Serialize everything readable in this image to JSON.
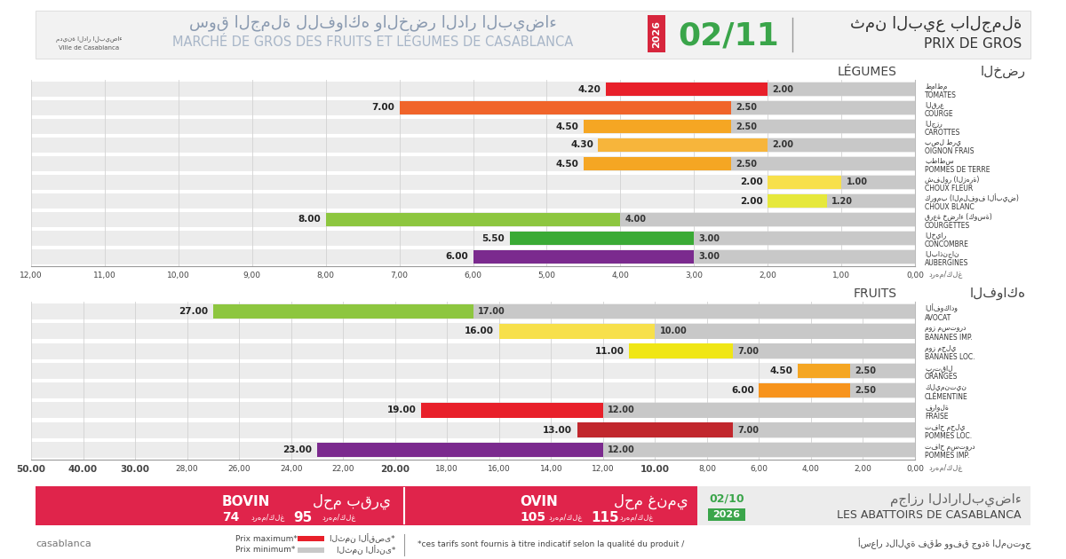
{
  "header": {
    "logo_ar": "مدينة الدار البيضاء",
    "logo_fr": "Ville de Casablanca",
    "title_ar": "سوق الجملة للفواكه والخضر الدار البيضاء",
    "title_fr": "MARCHÉ DE GROS DES FRUITS ET LÉGUMES DE CASABLANCA",
    "year": "2026",
    "date": "02/11",
    "price_title_ar": "ثمن البيع بالجملة",
    "price_title_fr": "PRIX DE GROS"
  },
  "chart_data": [
    {
      "type": "bar",
      "orientation": "horizontal",
      "title": "LÉGUMES",
      "subtitle": "الخضر",
      "x_label": "درهم/كلغ",
      "categories": [
        "طماطم\nTOMATES",
        "القرع\nCOURGE",
        "الجزر\nCAROTTES",
        "بصل طري\nOIGNON FRAIS",
        "بطاطس\nPOMMES DE TERRE",
        "شفلور (الزهرة)\nCHOUX FLEUR",
        "كرومب (الملفوف الأبيض)\nCHOUX BLANC",
        "قرعة خضراء (كوسة)\nCOURGETTES",
        "الخيار\nCONCOMBRE",
        "الباذنجان\nAUBERGINES"
      ],
      "series": [
        {
          "name": "Prix maximum*",
          "colors": [
            "#e8202a",
            "#f0642a",
            "#f5a623",
            "#f7b53b",
            "#f5a623",
            "#f7e04b",
            "#e6e83c",
            "#8dc63f",
            "#3aaa35",
            "#7b2a8e"
          ],
          "values": [
            4.2,
            7.0,
            4.5,
            4.3,
            4.5,
            2.0,
            2.0,
            8.0,
            5.5,
            6.0
          ],
          "value_labels": [
            "4.20",
            "7.00",
            "4.50",
            "4.30",
            "4.50",
            "2.00",
            "2.00",
            "8.00",
            "5.50",
            "6.00"
          ]
        },
        {
          "name": "Prix minimum*",
          "color": "#c8c8c8",
          "values": [
            2.0,
            2.5,
            2.5,
            2.0,
            2.5,
            1.0,
            1.2,
            4.0,
            3.0,
            3.0
          ],
          "value_labels": [
            "2.00",
            "2.50",
            "2.50",
            "2.00",
            "2.50",
            "1.00",
            "1.20",
            "4.00",
            "3.00",
            "3.00"
          ]
        }
      ],
      "xlim": [
        12,
        0
      ],
      "xticks": [
        {
          "value": 0,
          "label": "0,00"
        },
        {
          "value": 1,
          "label": "1,00"
        },
        {
          "value": 2,
          "label": "2,00"
        },
        {
          "value": 3,
          "label": "3,00"
        },
        {
          "value": 4,
          "label": "4,00"
        },
        {
          "value": 5,
          "label": "5,00"
        },
        {
          "value": 6,
          "label": "6,00"
        },
        {
          "value": 7,
          "label": "7,00"
        },
        {
          "value": 8,
          "label": "8,00"
        },
        {
          "value": 9,
          "label": "9,00"
        },
        {
          "value": 10,
          "label": "10,00"
        },
        {
          "value": 11,
          "label": "11,00"
        },
        {
          "value": 12,
          "label": "12,00"
        }
      ],
      "grid": true,
      "data_labels": true,
      "stacked": false
    },
    {
      "type": "bar",
      "orientation": "horizontal",
      "title": "FRUITS",
      "subtitle": "الفواكه",
      "x_label": "درهم/كلغ",
      "categories": [
        "الأفوكادو\nAVOCAT",
        "موز مستورد\nBANANES IMP.",
        "موز محلي\nBANANES LOC.",
        "برتقال\nORANGES",
        "كليمنتين\nCLÉMENTINE",
        "فراولة\nFRAISE",
        "تفاح محلي\nPOMMES LOC.",
        "تفاح مستورد\nPOMMES IMP."
      ],
      "series": [
        {
          "name": "Prix maximum*",
          "colors": [
            "#8dc63f",
            "#f7e04b",
            "#f0e615",
            "#f5a623",
            "#f7941d",
            "#e8202a",
            "#c1272d",
            "#7b2a8e"
          ],
          "values": [
            27.0,
            16.0,
            11.0,
            4.5,
            6.0,
            19.0,
            13.0,
            23.0
          ],
          "value_labels": [
            "27.00",
            "16.00",
            "11.00",
            "4.50",
            "6.00",
            "19.00",
            "13.00",
            "23.00"
          ]
        },
        {
          "name": "Prix minimum*",
          "color": "#c8c8c8",
          "values": [
            17.0,
            10.0,
            7.0,
            2.5,
            2.5,
            12.0,
            7.0,
            12.0
          ],
          "value_labels": [
            "17.00",
            "10.00",
            "7.00",
            "2.50",
            "2.50",
            "12.00",
            "7.00",
            "12.00"
          ]
        }
      ],
      "xlim": [
        50,
        0
      ],
      "xticks": [
        {
          "value": 0,
          "label": "0,00"
        },
        {
          "value": 2,
          "label": "2,00"
        },
        {
          "value": 4,
          "label": "4,00"
        },
        {
          "value": 6,
          "label": "6,00"
        },
        {
          "value": 8,
          "label": "8,00"
        },
        {
          "value": 10,
          "label": "10.00"
        },
        {
          "value": 12,
          "label": "12,00"
        },
        {
          "value": 14,
          "label": "14,00"
        },
        {
          "value": 16,
          "label": "16,00"
        },
        {
          "value": 18,
          "label": "18,00"
        },
        {
          "value": 20,
          "label": "20.00"
        },
        {
          "value": 22,
          "label": "22,00"
        },
        {
          "value": 24,
          "label": "24,00"
        },
        {
          "value": 26,
          "label": "26,00"
        },
        {
          "value": 28,
          "label": "28,00"
        },
        {
          "value": 30,
          "label": "30.00"
        },
        {
          "value": 40,
          "label": "40.00"
        },
        {
          "value": 50,
          "label": "50.00"
        }
      ],
      "grid": true,
      "data_labels": true,
      "stacked": false
    }
  ],
  "abattoirs": {
    "title_ar": "مجازر الدارالبيضاء",
    "title_fr": "LES ABATTOIRS DE CASABLANCA",
    "date": "02/10",
    "year": "2026",
    "unit": "درهم/كلغ",
    "items": [
      {
        "name": "BOVIN",
        "name_ar": "لحم بقري",
        "min": 74,
        "max": 95
      },
      {
        "name": "OVIN",
        "name_ar": "لحم غنمي",
        "min": 105,
        "max": 115
      }
    ]
  },
  "footer": {
    "logo": "casablanca",
    "legend_ar": [
      "الثمن الأقصى*",
      "الثمن الأدنى*"
    ],
    "note_fr": "*ces tarifs sont fournis à titre indicatif selon la qualité du produit /",
    "note_ar": "أسعار دلالية فقط ووفق جودة المنتوج"
  }
}
